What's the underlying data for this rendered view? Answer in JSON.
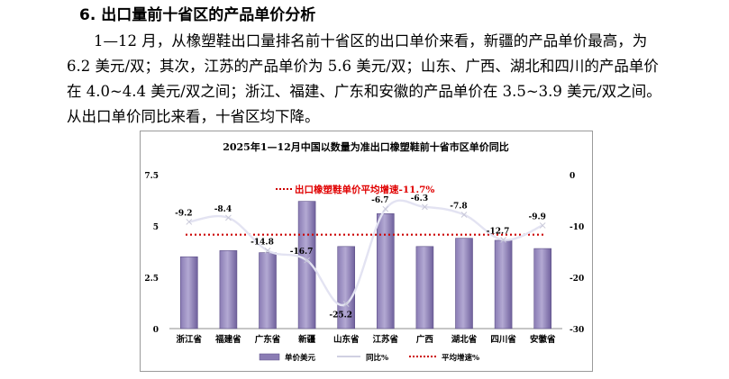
{
  "section": {
    "heading": "6. 出口量前十省区的产品单价分析",
    "paragraph": "1—12 月，从橡塑鞋出口量排名前十省区的出口单价来看，新疆的产品单价最高，为 6.2 美元/双；其次，江苏的产品单价为 5.6 美元/双；山东、广西、湖北和四川的产品单价在 4.0~4.4 美元/双之间；浙江、福建、广东和安徽的产品单价在 3.5~3.9 美元/双之间。从出口单价同比来看，十省区均下降。"
  },
  "chart_data": {
    "type": "bar",
    "title": "2025年1—12月中国以数量为准出口橡塑鞋前十省市区单价同比",
    "categories": [
      "浙江省",
      "福建省",
      "广东省",
      "新疆",
      "山东省",
      "江苏省",
      "广西",
      "湖北省",
      "四川省",
      "安徽省"
    ],
    "series": [
      {
        "name": "单价美元",
        "kind": "bar",
        "axis": "left",
        "values": [
          3.5,
          3.8,
          3.7,
          6.2,
          4.0,
          5.6,
          4.0,
          4.4,
          4.3,
          3.9
        ]
      },
      {
        "name": "同比%",
        "kind": "line",
        "axis": "right",
        "values": [
          -9.2,
          -8.4,
          -14.8,
          -16.7,
          -25.2,
          -6.7,
          -6.3,
          -7.8,
          -12.7,
          -9.9
        ],
        "labels": [
          "-9.2",
          "-8.4",
          "-14.8",
          "-16.7",
          "-25.2",
          "-6.7",
          "-6.3",
          "-7.8",
          "-12.7",
          "-9.9"
        ]
      },
      {
        "name": "平均增速%",
        "kind": "reference-line",
        "axis": "right",
        "value": -11.7
      }
    ],
    "annotation": "出口橡塑鞋单价平均增速-11.7%",
    "left_axis": {
      "ylim": [
        0,
        7.5
      ],
      "ticks": [
        "0",
        "2.5",
        "5",
        "7.5"
      ]
    },
    "right_axis": {
      "ylim": [
        -30,
        0
      ],
      "ticks": [
        "-30",
        "-20",
        "-10",
        "0"
      ]
    },
    "grid": false,
    "legend_position": "bottom",
    "colors": {
      "bar_top": "#b3a9d3",
      "bar_mid": "#8a7cb4",
      "bar_edge": "#5e5088",
      "line": "#e3e3f2",
      "average": "#cc0000",
      "annotation": "#e00000"
    }
  }
}
